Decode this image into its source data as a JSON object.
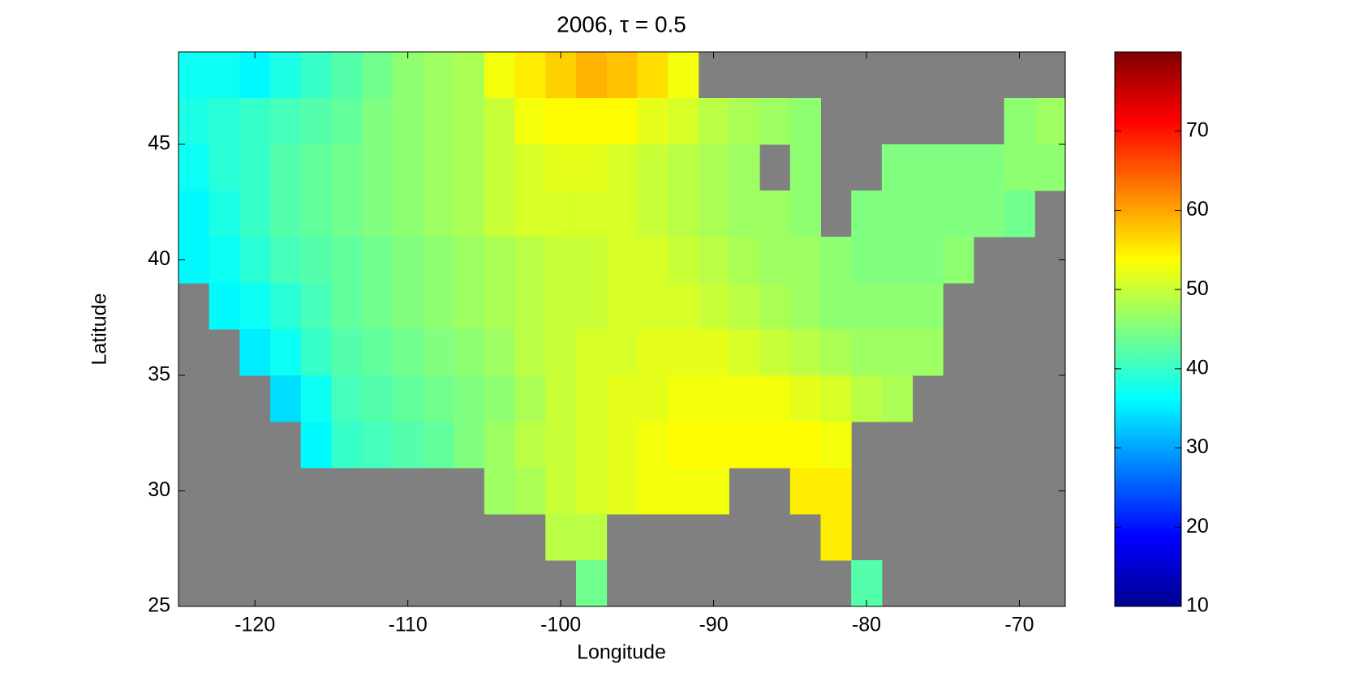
{
  "chart_data": {
    "type": "heatmap",
    "title": "2006, τ = 0.5",
    "xlabel": "Longitude",
    "ylabel": "Latitude",
    "x": [
      -124,
      -122,
      -120,
      -118,
      -116,
      -114,
      -112,
      -110,
      -108,
      -106,
      -104,
      -102,
      -100,
      -98,
      -96,
      -94,
      -92,
      -90,
      -88,
      -86,
      -84,
      -82,
      -80,
      -78,
      -76,
      -74,
      -72,
      -70,
      -68
    ],
    "y": [
      48,
      46,
      44,
      42,
      40,
      38,
      36,
      34,
      32,
      30,
      28,
      26
    ],
    "values": [
      [
        37,
        37,
        36,
        38,
        40,
        42,
        44,
        46,
        47,
        48,
        53,
        55,
        57,
        59,
        58,
        56,
        53,
        null,
        null,
        null,
        null,
        null,
        null,
        null,
        null,
        null,
        null,
        null,
        null
      ],
      [
        38,
        39,
        40,
        41,
        42,
        43,
        45,
        46,
        47,
        48,
        50,
        53,
        54,
        54,
        54,
        52,
        51,
        49,
        48,
        47,
        46,
        null,
        null,
        null,
        null,
        null,
        null,
        46,
        47
      ],
      [
        37,
        39,
        40,
        42,
        43,
        44,
        45,
        46,
        47,
        48,
        50,
        51,
        52,
        52,
        51,
        50,
        49,
        48,
        47,
        null,
        46,
        null,
        null,
        45,
        45,
        45,
        45,
        46,
        46
      ],
      [
        36,
        38,
        40,
        42,
        43,
        44,
        45,
        46,
        47,
        48,
        50,
        51,
        51,
        51,
        51,
        50,
        49,
        48,
        47,
        47,
        46,
        null,
        45,
        45,
        45,
        45,
        45,
        44,
        null
      ],
      [
        36,
        37,
        39,
        41,
        42,
        43,
        44,
        45,
        46,
        47,
        48,
        49,
        50,
        50,
        51,
        51,
        50,
        49,
        48,
        47,
        47,
        46,
        45,
        45,
        45,
        46,
        null,
        null,
        null
      ],
      [
        null,
        36,
        37,
        39,
        41,
        43,
        44,
        45,
        46,
        47,
        48,
        49,
        50,
        50,
        51,
        51,
        51,
        50,
        49,
        48,
        47,
        46,
        46,
        46,
        46,
        null,
        null,
        null,
        null
      ],
      [
        null,
        null,
        35,
        37,
        40,
        42,
        43,
        44,
        45,
        46,
        47,
        49,
        50,
        51,
        51,
        52,
        52,
        52,
        51,
        50,
        49,
        48,
        47,
        47,
        47,
        null,
        null,
        null,
        null
      ],
      [
        null,
        null,
        null,
        34,
        37,
        41,
        42,
        43,
        44,
        45,
        46,
        48,
        50,
        51,
        52,
        52,
        53,
        53,
        53,
        53,
        52,
        51,
        49,
        48,
        null,
        null,
        null,
        null,
        null
      ],
      [
        null,
        null,
        null,
        null,
        36,
        40,
        41,
        42,
        43,
        45,
        47,
        49,
        50,
        51,
        52,
        53,
        54,
        54,
        54,
        54,
        54,
        53,
        null,
        null,
        null,
        null,
        null,
        null,
        null
      ],
      [
        null,
        null,
        null,
        null,
        null,
        null,
        null,
        null,
        null,
        null,
        47,
        48,
        50,
        51,
        52,
        53,
        53,
        53,
        null,
        null,
        55,
        55,
        null,
        null,
        null,
        null,
        null,
        null,
        null
      ],
      [
        null,
        null,
        null,
        null,
        null,
        null,
        null,
        null,
        null,
        null,
        null,
        null,
        49,
        49,
        null,
        null,
        null,
        null,
        null,
        null,
        null,
        55,
        null,
        null,
        null,
        null,
        null,
        null,
        null
      ],
      [
        null,
        null,
        null,
        null,
        null,
        null,
        null,
        null,
        null,
        null,
        null,
        null,
        null,
        44,
        null,
        null,
        null,
        null,
        null,
        null,
        null,
        null,
        42,
        null,
        null,
        null,
        null,
        null,
        null
      ]
    ],
    "xlim": [
      -125,
      -67
    ],
    "ylim": [
      25,
      49
    ],
    "xticks": [
      -120,
      -110,
      -100,
      -90,
      -80,
      -70
    ],
    "yticks": [
      25,
      30,
      35,
      40,
      45
    ],
    "colormap": "jet",
    "clim": [
      10,
      80
    ],
    "cticks": [
      10,
      20,
      30,
      40,
      50,
      60,
      70
    ],
    "background": "#808080"
  }
}
